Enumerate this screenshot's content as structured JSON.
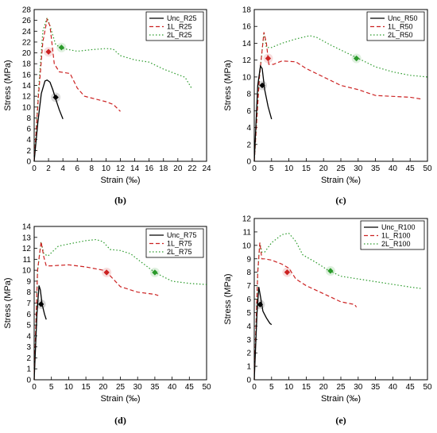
{
  "chart_data": [
    {
      "type": "line",
      "panel_label": "(b)",
      "xlabel": "Strain (‰)",
      "ylabel": "Stress (MPa)",
      "xlim": [
        0,
        24
      ],
      "ylim": [
        0,
        28
      ],
      "xticks": [
        0,
        2,
        4,
        6,
        8,
        10,
        12,
        14,
        16,
        18,
        20,
        22,
        24
      ],
      "yticks": [
        0,
        2,
        4,
        6,
        8,
        10,
        12,
        14,
        16,
        18,
        20,
        22,
        24,
        26,
        28
      ],
      "legend_position": "top-right",
      "series": [
        {
          "name": "Unc_R25",
          "color": "#000000",
          "style": "solid",
          "x": [
            0,
            0.5,
            1.0,
            1.5,
            1.8,
            2.2,
            2.6,
            3.0,
            3.5,
            4.0
          ],
          "y": [
            0,
            7,
            12.5,
            14.8,
            15.0,
            14.6,
            13.2,
            11.5,
            9.5,
            7.8
          ],
          "marker": {
            "x": 3.0,
            "y": 11.8
          }
        },
        {
          "name": "1L_R25",
          "color": "#cc2222",
          "style": "dashed",
          "x": [
            0,
            0.6,
            1.2,
            1.8,
            2.2,
            2.8,
            3.5,
            5.0,
            6.0,
            7.0,
            8.5,
            10.0,
            11.0,
            12.0
          ],
          "y": [
            0,
            12,
            22,
            26.2,
            25.0,
            18.0,
            16.5,
            16.2,
            13.5,
            12.0,
            11.5,
            11.0,
            10.5,
            9.2
          ],
          "marker": {
            "x": 2.0,
            "y": 20.2
          }
        },
        {
          "name": "2L_R25",
          "color": "#2a9a2a",
          "style": "dotted",
          "x": [
            0,
            0.6,
            1.2,
            1.8,
            2.2,
            3.0,
            4.0,
            6.0,
            8.0,
            10.0,
            11.0,
            12.0,
            14.0,
            16.0,
            18.0,
            20.0,
            21.0,
            22.0
          ],
          "y": [
            0,
            13,
            24,
            26.5,
            25.0,
            21.5,
            20.8,
            20.3,
            20.6,
            20.8,
            20.7,
            19.5,
            18.7,
            18.3,
            17.0,
            16.0,
            15.5,
            13.3
          ],
          "marker": {
            "x": 3.8,
            "y": 21.0
          }
        }
      ]
    },
    {
      "type": "line",
      "panel_label": "(c)",
      "xlabel": "Strain (‰)",
      "ylabel": "Stress (MPa)",
      "xlim": [
        0,
        50
      ],
      "ylim": [
        0,
        18
      ],
      "xticks": [
        0,
        5,
        10,
        15,
        20,
        25,
        30,
        35,
        40,
        45,
        50
      ],
      "yticks": [
        0,
        2,
        4,
        6,
        8,
        10,
        12,
        14,
        16,
        18
      ],
      "legend_position": "top-right",
      "series": [
        {
          "name": "Unc_R50",
          "color": "#000000",
          "style": "solid",
          "x": [
            0,
            1.0,
            1.8,
            2.3,
            3.0,
            4.0,
            5.0
          ],
          "y": [
            0,
            9.0,
            11.3,
            11.0,
            8.5,
            6.5,
            5.0
          ],
          "marker": {
            "x": 2.3,
            "y": 9.0
          }
        },
        {
          "name": "1L_R50",
          "color": "#cc2222",
          "style": "dashed",
          "x": [
            0,
            1.5,
            2.8,
            3.5,
            4.2,
            5.5,
            8.0,
            12.0,
            15.0,
            20.0,
            25.0,
            30.0,
            35.0,
            40.0,
            45.0,
            48.0
          ],
          "y": [
            0,
            10,
            15.3,
            14.0,
            11.5,
            11.5,
            11.9,
            11.8,
            11.0,
            10.0,
            9.0,
            8.5,
            7.8,
            7.7,
            7.6,
            7.4
          ],
          "marker": {
            "x": 4.0,
            "y": 12.2
          }
        },
        {
          "name": "2L_R50",
          "color": "#2a9a2a",
          "style": "dotted",
          "x": [
            0,
            1.5,
            2.8,
            3.5,
            5.0,
            8.0,
            12.0,
            16.0,
            18.0,
            22.0,
            26.0,
            30.0,
            35.0,
            40.0,
            45.0,
            50.0
          ],
          "y": [
            0,
            10,
            15.3,
            13.5,
            13.5,
            14.0,
            14.5,
            14.9,
            14.7,
            13.8,
            13.0,
            12.2,
            11.2,
            10.6,
            10.2,
            10.0
          ],
          "marker": {
            "x": 29.5,
            "y": 12.2
          }
        }
      ]
    },
    {
      "type": "line",
      "panel_label": "(d)",
      "xlabel": "Strain (‰)",
      "ylabel": "Stress (MPa)",
      "xlim": [
        0,
        50
      ],
      "ylim": [
        0,
        14
      ],
      "xticks": [
        0,
        5,
        10,
        15,
        20,
        25,
        30,
        35,
        40,
        45,
        50
      ],
      "yticks": [
        0,
        1,
        2,
        3,
        4,
        5,
        6,
        7,
        8,
        9,
        10,
        11,
        12,
        13,
        14
      ],
      "legend_position": "top-right",
      "series": [
        {
          "name": "Unc_R75",
          "color": "#000000",
          "style": "solid",
          "x": [
            0,
            0.8,
            1.4,
            1.8,
            2.3,
            3.0,
            3.5
          ],
          "y": [
            0,
            6.0,
            8.6,
            8.2,
            6.9,
            6.0,
            5.5
          ],
          "marker": {
            "x": 2.0,
            "y": 6.9
          }
        },
        {
          "name": "1L_R75",
          "color": "#cc2222",
          "style": "dashed",
          "x": [
            0,
            1.0,
            2.0,
            2.8,
            3.5,
            5.0,
            10.0,
            15.0,
            20.0,
            22.0,
            25.0,
            30.0,
            35.0,
            36.0
          ],
          "y": [
            0,
            10,
            12.6,
            11.2,
            10.4,
            10.4,
            10.5,
            10.3,
            10.0,
            9.5,
            8.5,
            8.0,
            7.8,
            7.7
          ],
          "marker": {
            "x": 21.0,
            "y": 9.8
          }
        },
        {
          "name": "2L_R75",
          "color": "#2a9a2a",
          "style": "dotted",
          "x": [
            0,
            1.0,
            2.0,
            2.8,
            4.0,
            7.0,
            10.0,
            15.0,
            18.0,
            20.0,
            22.0,
            25.0,
            28.0,
            30.0,
            35.0,
            40.0,
            45.0,
            50.0
          ],
          "y": [
            0,
            10,
            12.6,
            11.5,
            11.3,
            12.2,
            12.4,
            12.7,
            12.8,
            12.6,
            11.9,
            11.8,
            11.5,
            11.0,
            9.8,
            9.0,
            8.8,
            8.7
          ],
          "marker": {
            "x": 35.0,
            "y": 9.8
          }
        }
      ]
    },
    {
      "type": "line",
      "panel_label": "(e)",
      "xlabel": "Strain (‰)",
      "ylabel": "Stress (MPa)",
      "xlim": [
        0,
        50
      ],
      "ylim": [
        0,
        12
      ],
      "xticks": [
        0,
        5,
        10,
        15,
        20,
        25,
        30,
        35,
        40,
        45,
        50
      ],
      "yticks": [
        0,
        1,
        2,
        3,
        4,
        5,
        6,
        7,
        8,
        9,
        10,
        11,
        12
      ],
      "legend_position": "top-right",
      "series": [
        {
          "name": "Unc_R100",
          "color": "#000000",
          "style": "solid",
          "x": [
            0,
            0.8,
            1.3,
            1.8,
            2.5,
            3.5,
            4.5,
            5.0
          ],
          "y": [
            0,
            5.0,
            6.9,
            6.2,
            5.1,
            4.6,
            4.2,
            4.1
          ],
          "marker": {
            "x": 1.7,
            "y": 5.6
          }
        },
        {
          "name": "1L_R100",
          "color": "#cc2222",
          "style": "dashed",
          "x": [
            0,
            1.0,
            1.6,
            2.2,
            3.0,
            5.0,
            8.0,
            10.0,
            12.0,
            15.0,
            20.0,
            25.0,
            29.0,
            29.5
          ],
          "y": [
            0,
            8.0,
            10.2,
            9.0,
            9.0,
            8.9,
            8.6,
            8.3,
            7.5,
            7.0,
            6.4,
            5.8,
            5.6,
            5.4
          ],
          "marker": {
            "x": 9.5,
            "y": 8.0
          }
        },
        {
          "name": "2L_R100",
          "color": "#2a9a2a",
          "style": "dotted",
          "x": [
            0,
            1.0,
            1.6,
            2.2,
            3.0,
            5.0,
            8.0,
            10.0,
            12.0,
            14.0,
            18.0,
            21.0,
            25.0,
            30.0,
            35.0,
            40.0,
            45.0,
            48.0
          ],
          "y": [
            0,
            8.0,
            10.2,
            9.5,
            9.5,
            10.2,
            10.8,
            10.9,
            10.3,
            9.3,
            8.7,
            8.2,
            7.7,
            7.5,
            7.3,
            7.1,
            6.9,
            6.8
          ],
          "marker": {
            "x": 22.0,
            "y": 8.1
          }
        }
      ]
    }
  ]
}
